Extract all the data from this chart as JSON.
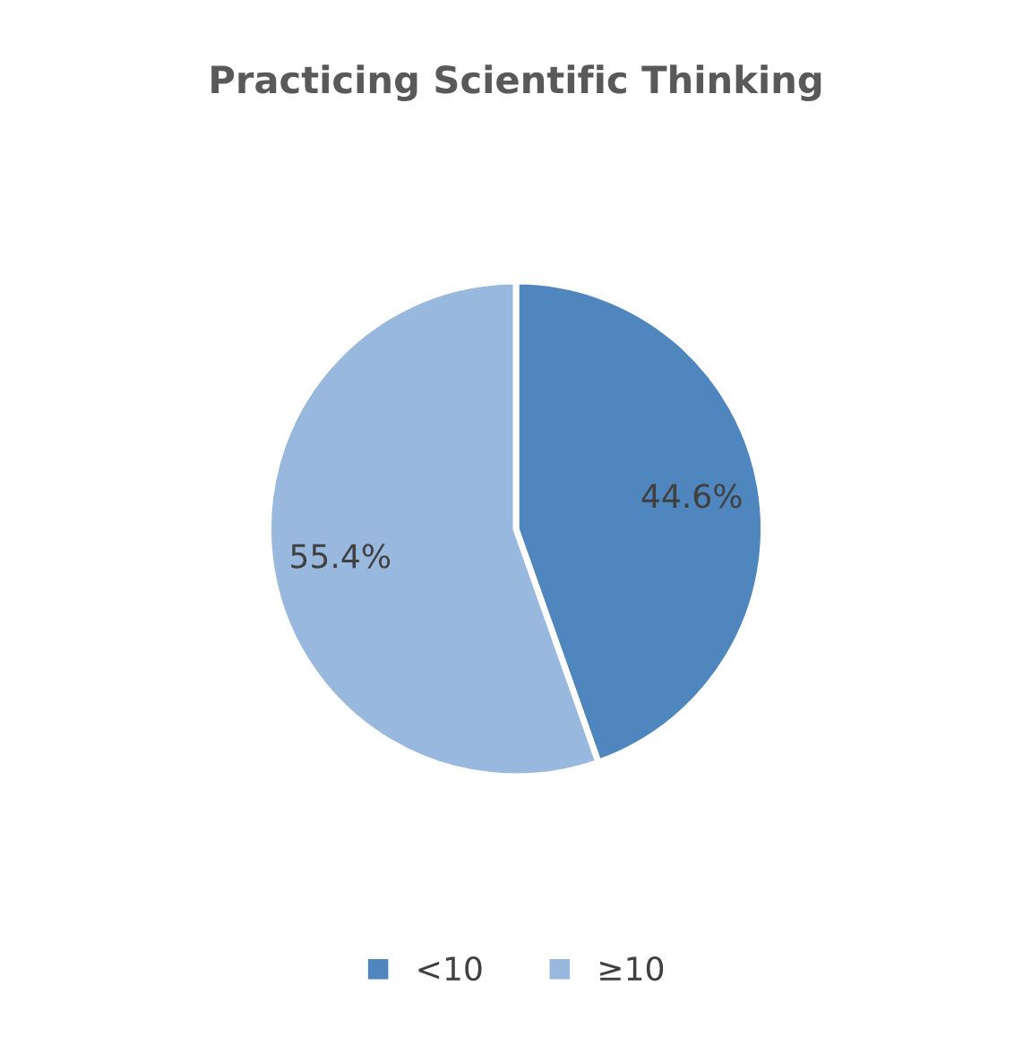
{
  "chart_data": {
    "type": "pie",
    "title": "Practicing Scientific Thinking",
    "categories": [
      "<10",
      "≥10"
    ],
    "values": [
      44.6,
      55.4
    ],
    "colors": [
      "#4f86bd",
      "#98b8de"
    ],
    "value_labels": [
      "44.6%",
      "55.4%"
    ],
    "legend": "bottom"
  }
}
